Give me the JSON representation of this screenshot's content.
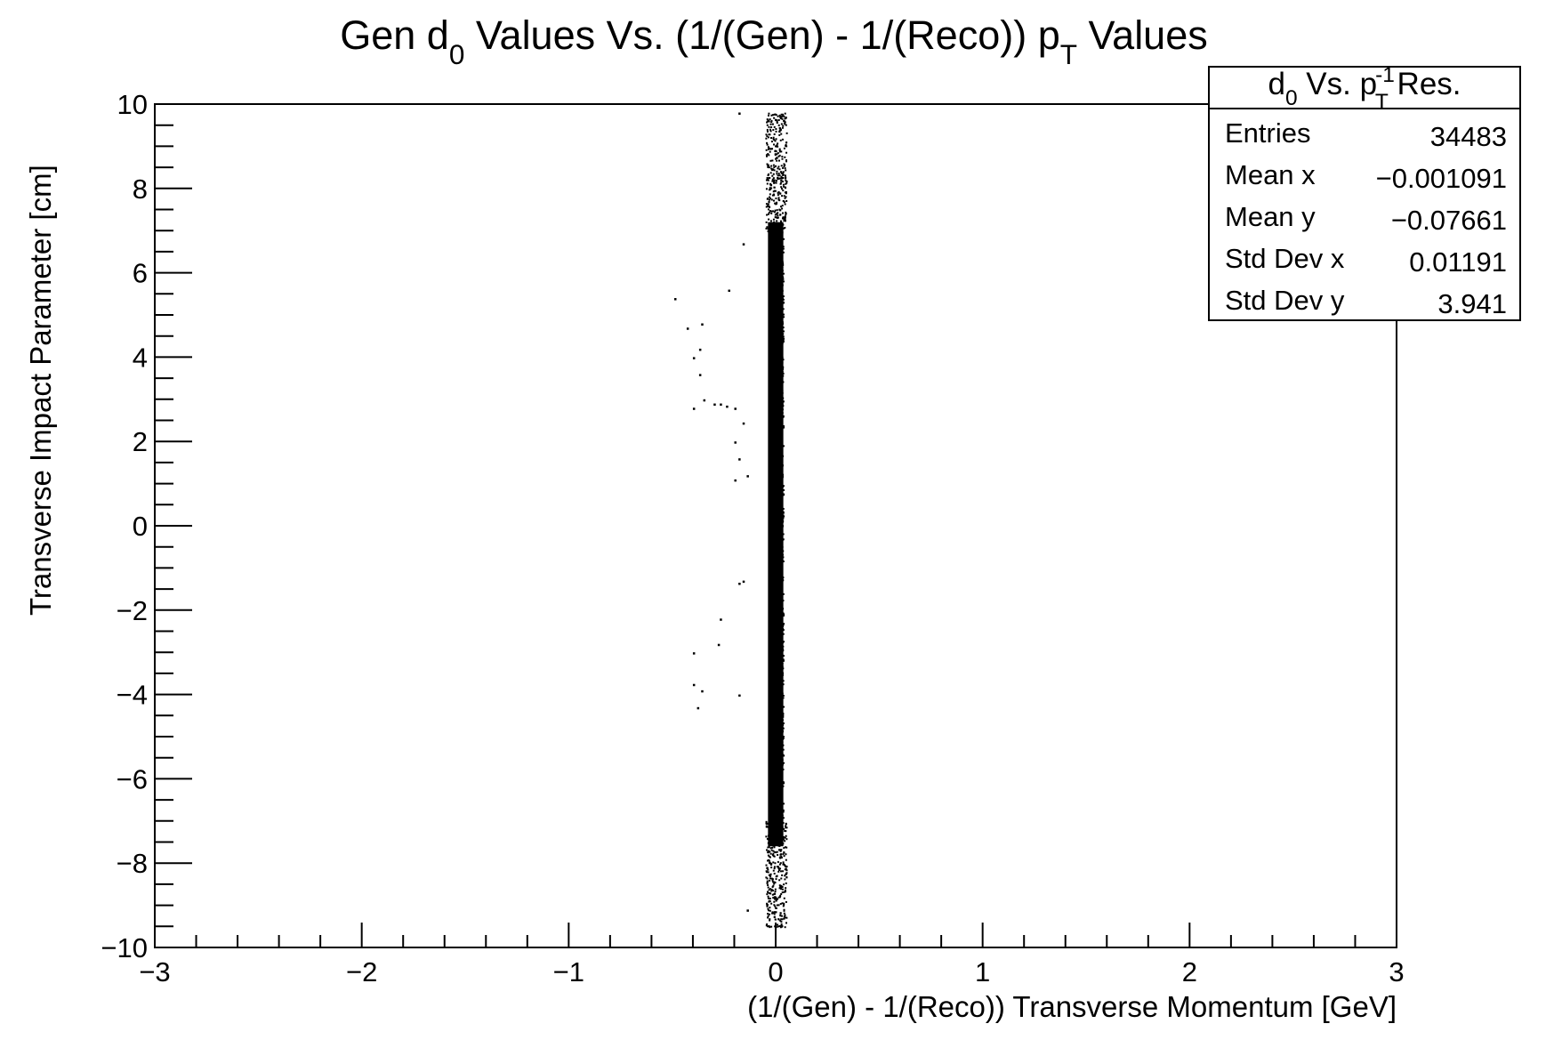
{
  "chart_data": {
    "type": "scatter",
    "title": "Gen d_0 Values Vs. (1/(Gen) - 1/(Reco)) p_T Values",
    "title_parts": {
      "a": "Gen d",
      "a_sub": "0",
      "b": " Values Vs. (1/(Gen) - 1/(Reco)) p",
      "b_sub": "T",
      "c": " Values"
    },
    "xlabel": "(1/(Gen) - 1/(Reco)) Transverse Momentum [GeV]",
    "ylabel": "Transverse Impact Parameter [cm]",
    "xlim": [
      -3,
      3
    ],
    "ylim": [
      -10,
      10
    ],
    "x_ticks": [
      "−3",
      "−2",
      "−1",
      "0",
      "1",
      "2",
      "3"
    ],
    "y_ticks": [
      "−10",
      "−8",
      "−6",
      "−4",
      "−2",
      "0",
      "2",
      "4",
      "6",
      "8",
      "10"
    ],
    "grid": false,
    "legend": "none",
    "marker_color": "#000000",
    "band": {
      "description": "dense vertical band of entries",
      "x_range": [
        -0.05,
        0.05
      ],
      "y_range": [
        -9.5,
        9.8
      ]
    },
    "outliers": [
      {
        "x": -0.49,
        "y": 5.4
      },
      {
        "x": -0.43,
        "y": 4.7
      },
      {
        "x": -0.36,
        "y": 4.8
      },
      {
        "x": -0.37,
        "y": 4.2
      },
      {
        "x": -0.4,
        "y": 4.0
      },
      {
        "x": -0.37,
        "y": 3.6
      },
      {
        "x": -0.35,
        "y": 3.0
      },
      {
        "x": -0.4,
        "y": 2.8
      },
      {
        "x": -0.3,
        "y": 2.9
      },
      {
        "x": -0.27,
        "y": 2.9
      },
      {
        "x": -0.24,
        "y": 2.85
      },
      {
        "x": -0.2,
        "y": 2.8
      },
      {
        "x": -0.16,
        "y": 2.45
      },
      {
        "x": -0.2,
        "y": 2.0
      },
      {
        "x": -0.18,
        "y": 1.6
      },
      {
        "x": -0.2,
        "y": 1.1
      },
      {
        "x": -0.23,
        "y": 5.6
      },
      {
        "x": -0.16,
        "y": 6.7
      },
      {
        "x": -0.18,
        "y": 9.8
      },
      {
        "x": -0.14,
        "y": 1.2
      },
      {
        "x": -0.16,
        "y": -1.3
      },
      {
        "x": -0.18,
        "y": -1.35
      },
      {
        "x": -0.27,
        "y": -2.2
      },
      {
        "x": -0.28,
        "y": -2.8
      },
      {
        "x": -0.4,
        "y": -3.0
      },
      {
        "x": -0.4,
        "y": -3.75
      },
      {
        "x": -0.36,
        "y": -3.9
      },
      {
        "x": -0.38,
        "y": -4.3
      },
      {
        "x": -0.18,
        "y": -4.0
      },
      {
        "x": -0.14,
        "y": -9.1
      }
    ]
  },
  "stats_box": {
    "title_parts": {
      "a": "d",
      "a_sub": "0",
      "b": " Vs. p",
      "b_sup": "-1",
      "b_sub": "T",
      "c": " Res."
    },
    "rows": [
      {
        "label": "Entries",
        "value": "34483"
      },
      {
        "label": "Mean x",
        "value": "−0.001091"
      },
      {
        "label": "Mean y",
        "value": "−0.07661"
      },
      {
        "label": "Std Dev x",
        "value": "0.01191"
      },
      {
        "label": "Std Dev y",
        "value": "3.941"
      }
    ]
  }
}
